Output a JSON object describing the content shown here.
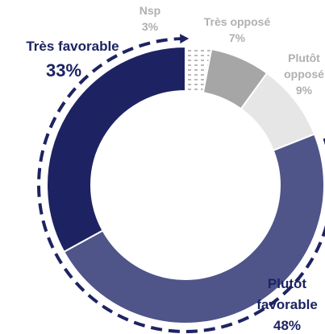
{
  "chart_data": {
    "type": "pie",
    "style": "donut",
    "slices": [
      {
        "label": "Nsp",
        "value": 3,
        "value_label": "3%",
        "color": "#ffffff",
        "pattern": "dotted"
      },
      {
        "label": "Très opposé",
        "value": 7,
        "value_label": "7%",
        "color": "#a6a6a6"
      },
      {
        "label": "Plutôt opposé",
        "value": 9,
        "value_label": "9%",
        "color": "#e6e6e6"
      },
      {
        "label": "Plutôt favorable",
        "value": 48,
        "value_label": "48%",
        "color": "#4f5589"
      },
      {
        "label": "Très favorable",
        "value": 33,
        "value_label": "33%",
        "color": "#1d2362"
      }
    ],
    "label_lines": {
      "nsp": [
        "Nsp"
      ],
      "tres_oppose": [
        "Très opposé"
      ],
      "plutot_oppose": [
        "Plutôt",
        "opposé"
      ],
      "plutot_favorable": [
        "Plutôt",
        "favorable"
      ],
      "tres_favorable": [
        "Très favorable"
      ]
    },
    "label_colors": {
      "light": "#b0b0b0",
      "dark": "#1d2362"
    },
    "favorable_arc_color": "#1d2362"
  }
}
